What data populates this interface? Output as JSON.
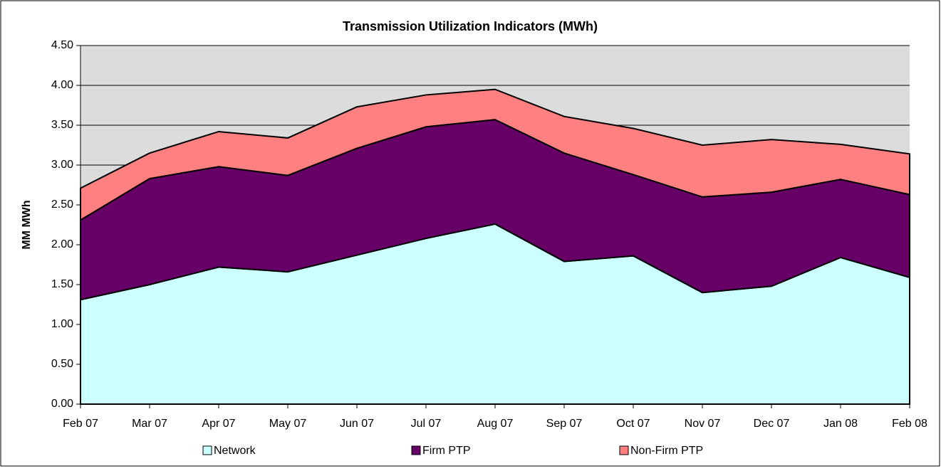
{
  "chart_data": {
    "type": "stacked_area",
    "title": "Transmission Utilization Indicators (MWh)",
    "y_label": "MM MWh",
    "categories": [
      "Feb 07",
      "Mar 07",
      "Apr 07",
      "May 07",
      "Jun 07",
      "Jul 07",
      "Aug 07",
      "Sep 07",
      "Oct 07",
      "Nov 07",
      "Dec 07",
      "Jan 08",
      "Feb 08"
    ],
    "series": [
      {
        "name": "Network",
        "color": "#ccffff",
        "values": [
          1.31,
          1.5,
          1.72,
          1.66,
          1.87,
          2.08,
          2.26,
          1.79,
          1.86,
          1.4,
          1.48,
          1.84,
          1.59
        ]
      },
      {
        "name": "Firm PTP",
        "color": "#660066",
        "values": [
          1.0,
          1.33,
          1.26,
          1.21,
          1.34,
          1.4,
          1.31,
          1.36,
          1.02,
          1.2,
          1.18,
          0.98,
          1.04
        ]
      },
      {
        "name": "Non-Firm PTP",
        "color": "#ff8080",
        "values": [
          0.4,
          0.32,
          0.44,
          0.47,
          0.52,
          0.4,
          0.38,
          0.46,
          0.58,
          0.65,
          0.66,
          0.44,
          0.51
        ]
      }
    ],
    "ylim": [
      0,
      4.5
    ],
    "yticks": [
      {
        "value": 0,
        "label": "0.00"
      },
      {
        "value": 0.5,
        "label": "0.50"
      },
      {
        "value": 1,
        "label": "1.00"
      },
      {
        "value": 1.5,
        "label": "1.50"
      },
      {
        "value": 2,
        "label": "2.00"
      },
      {
        "value": 2.5,
        "label": "2.50"
      },
      {
        "value": 3,
        "label": "3.00"
      },
      {
        "value": 3.5,
        "label": "3.50"
      },
      {
        "value": 4,
        "label": "4.00"
      },
      {
        "value": 4.5,
        "label": "4.50"
      }
    ],
    "grid": true,
    "legend": "bottom"
  }
}
